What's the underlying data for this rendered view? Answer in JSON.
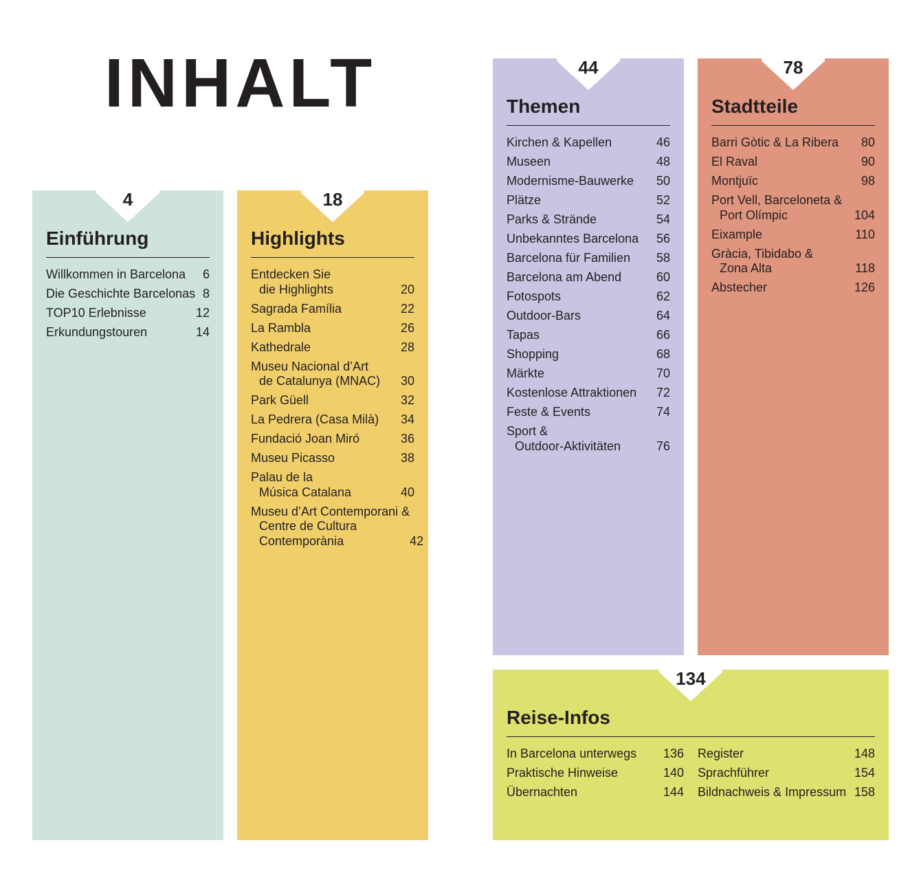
{
  "title": "INHALT",
  "sections": [
    {
      "page": 4,
      "heading": "Einführung",
      "entries": [
        {
          "lines": [
            "Willkommen in Barcelona"
          ],
          "page": 6
        },
        {
          "lines": [
            "Die Geschichte Barcelonas"
          ],
          "page": 8
        },
        {
          "lines": [
            "TOP10 Erlebnisse"
          ],
          "page": 12
        },
        {
          "lines": [
            "Erkundungstouren"
          ],
          "page": 14
        }
      ]
    },
    {
      "page": 18,
      "heading": "Highlights",
      "entries": [
        {
          "lines": [
            "Entdecken Sie",
            "die Highlights"
          ],
          "page": 20
        },
        {
          "lines": [
            "Sagrada Família"
          ],
          "page": 22
        },
        {
          "lines": [
            "La Rambla"
          ],
          "page": 26
        },
        {
          "lines": [
            "Kathedrale"
          ],
          "page": 28
        },
        {
          "lines": [
            "Museu Nacional d’Art",
            "de Catalunya (MNAC)"
          ],
          "page": 30
        },
        {
          "lines": [
            "Park Güell"
          ],
          "page": 32
        },
        {
          "lines": [
            "La Pedrera (Casa Milà)"
          ],
          "page": 34
        },
        {
          "lines": [
            "Fundació Joan Miró"
          ],
          "page": 36
        },
        {
          "lines": [
            "Museu Picasso"
          ],
          "page": 38
        },
        {
          "lines": [
            "Palau de la",
            "Música Catalana"
          ],
          "page": 40
        },
        {
          "lines": [
            "Museu d’Art Contemporani &",
            "Centre de Cultura",
            "Contemporània"
          ],
          "page": 42
        }
      ]
    },
    {
      "page": 44,
      "heading": "Themen",
      "entries": [
        {
          "lines": [
            "Kirchen & Kapellen"
          ],
          "page": 46
        },
        {
          "lines": [
            "Museen"
          ],
          "page": 48
        },
        {
          "lines": [
            "Modernisme-Bauwerke"
          ],
          "page": 50
        },
        {
          "lines": [
            "Plätze"
          ],
          "page": 52
        },
        {
          "lines": [
            "Parks & Strände"
          ],
          "page": 54
        },
        {
          "lines": [
            "Unbekanntes Barcelona"
          ],
          "page": 56
        },
        {
          "lines": [
            "Barcelona für Familien"
          ],
          "page": 58
        },
        {
          "lines": [
            "Barcelona am Abend"
          ],
          "page": 60
        },
        {
          "lines": [
            "Fotospots"
          ],
          "page": 62
        },
        {
          "lines": [
            "Outdoor-Bars"
          ],
          "page": 64
        },
        {
          "lines": [
            "Tapas"
          ],
          "page": 66
        },
        {
          "lines": [
            "Shopping"
          ],
          "page": 68
        },
        {
          "lines": [
            "Märkte"
          ],
          "page": 70
        },
        {
          "lines": [
            "Kostenlose Attraktionen"
          ],
          "page": 72
        },
        {
          "lines": [
            "Feste & Events"
          ],
          "page": 74
        },
        {
          "lines": [
            "Sport &",
            "Outdoor-Aktivitäten"
          ],
          "page": 76
        }
      ]
    },
    {
      "page": 78,
      "heading": "Stadtteile",
      "entries": [
        {
          "lines": [
            "Barri Gòtic & La Ribera"
          ],
          "page": 80
        },
        {
          "lines": [
            "El Raval"
          ],
          "page": 90
        },
        {
          "lines": [
            "Montjuïc"
          ],
          "page": 98
        },
        {
          "lines": [
            "Port Vell, Barceloneta &",
            "Port Olímpic"
          ],
          "page": 104
        },
        {
          "lines": [
            "Eixample"
          ],
          "page": 110
        },
        {
          "lines": [
            "Gràcia, Tibidabo &",
            "Zona Alta"
          ],
          "page": 118
        },
        {
          "lines": [
            "Abstecher"
          ],
          "page": 126
        }
      ]
    },
    {
      "page": 134,
      "heading": "Reise-Infos",
      "columns": [
        [
          {
            "lines": [
              "In Barcelona unterwegs"
            ],
            "page": 136
          },
          {
            "lines": [
              "Praktische Hinweise"
            ],
            "page": 140
          },
          {
            "lines": [
              "Übernachten"
            ],
            "page": 144
          }
        ],
        [
          {
            "lines": [
              "Register"
            ],
            "page": 148
          },
          {
            "lines": [
              "Sprachführer"
            ],
            "page": 154
          },
          {
            "lines": [
              "Bildnachweis & Impressum"
            ],
            "page": 158
          }
        ]
      ]
    }
  ]
}
